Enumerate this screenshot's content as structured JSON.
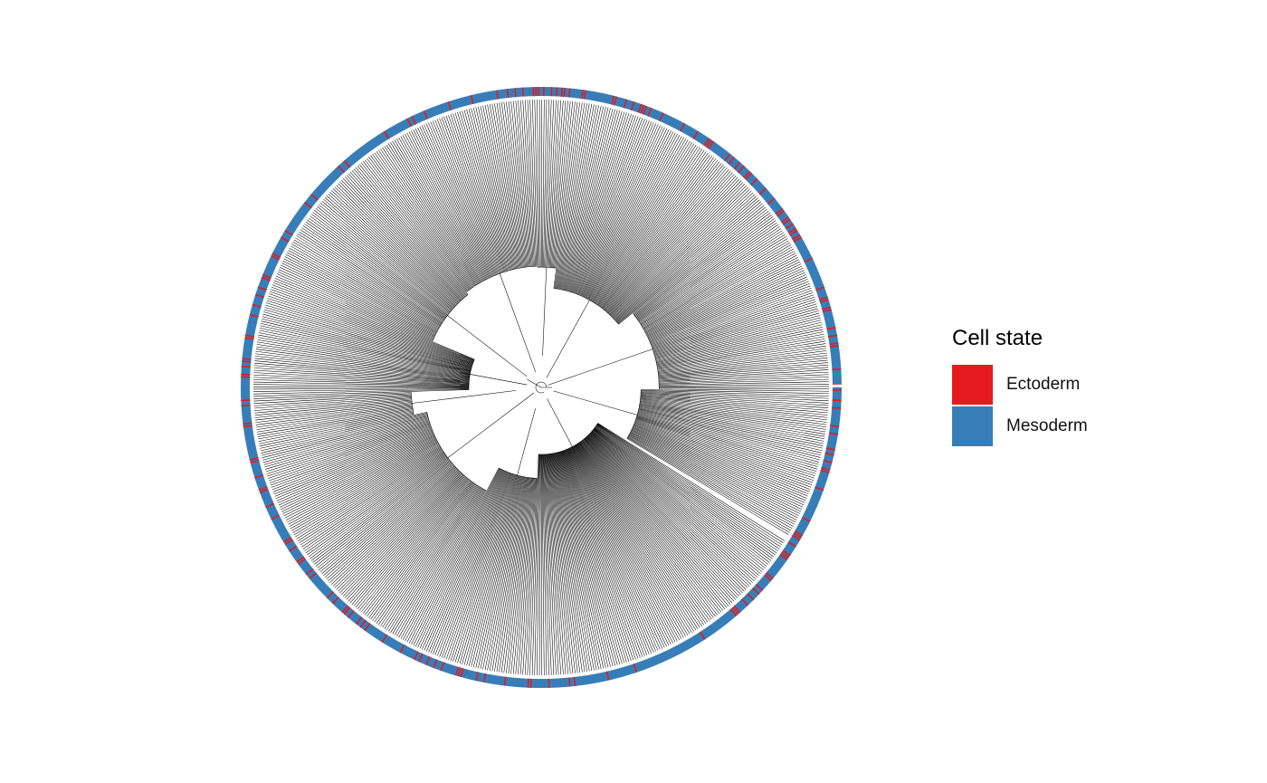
{
  "legend": {
    "title": "Cell state",
    "items": [
      {
        "label": "Ectoderm",
        "color": "#e41a1c"
      },
      {
        "label": "Mesoderm",
        "color": "#377eb8"
      }
    ]
  },
  "tree": {
    "layout": "circular",
    "tip_annotation": "Cell state",
    "colors": {
      "branch": "#000000",
      "ring_gap": "#ffffff"
    }
  }
}
